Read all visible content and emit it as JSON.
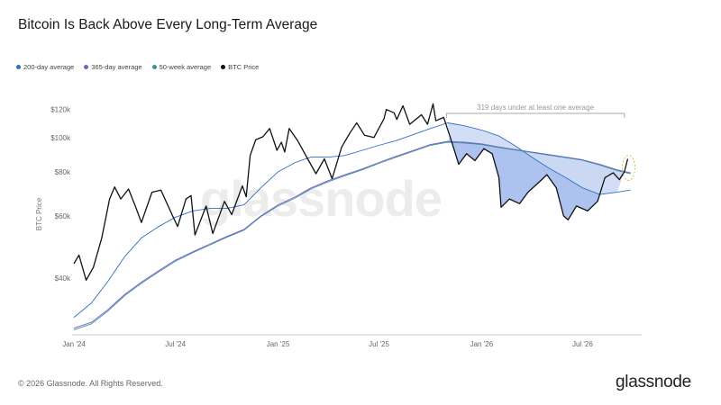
{
  "footer": {
    "copyright": "© 2026 Glassnode. All Rights Reserved.",
    "brand": "glassnode"
  },
  "watermark": "glassnode",
  "colors": {
    "sma200": "#2f6fc0",
    "sma365": "#7b5fc7",
    "wma50": "#3e8e9e",
    "btc": "#111111",
    "fill": "#6b8fe0",
    "highlight": "#d4c04a"
  },
  "chart_data": {
    "type": "line",
    "title": "Bitcoin Is Back Above Every Long-Term Average",
    "ylabel": "BTC Price",
    "xlabel": "",
    "y_scale": "log",
    "ylim": [
      28000,
      127000
    ],
    "xlim": [
      "2024-01-01",
      "2026-10-15"
    ],
    "y_ticks": [
      {
        "value": 40000,
        "label": "$40k"
      },
      {
        "value": 60000,
        "label": "$60k"
      },
      {
        "value": 80000,
        "label": "$80k"
      },
      {
        "value": 100000,
        "label": "$100k"
      },
      {
        "value": 120000,
        "label": "$120k"
      }
    ],
    "x_ticks": [
      {
        "date": "2024-01-01",
        "label": "Jan '24"
      },
      {
        "date": "2024-07-01",
        "label": "Jul '24"
      },
      {
        "date": "2025-01-01",
        "label": "Jan '25"
      },
      {
        "date": "2025-07-01",
        "label": "Jul '25"
      },
      {
        "date": "2026-01-01",
        "label": "Jan '26"
      },
      {
        "date": "2026-07-01",
        "label": "Jul '26"
      }
    ],
    "legend_position": "top-left",
    "grid": false,
    "annotation": {
      "text": "319 days under at least one average",
      "from": "2025-10-30",
      "to": "2026-09-14"
    },
    "series": [
      {
        "name": "200-day average",
        "color": "#2f6fc0",
        "points": [
          [
            "2024-01-01",
            31000
          ],
          [
            "2024-02-01",
            34000
          ],
          [
            "2024-03-01",
            39000
          ],
          [
            "2024-04-01",
            46000
          ],
          [
            "2024-05-01",
            52000
          ],
          [
            "2024-06-01",
            56000
          ],
          [
            "2024-07-01",
            59500
          ],
          [
            "2024-08-01",
            62000
          ],
          [
            "2024-09-01",
            63000
          ],
          [
            "2024-10-01",
            63000
          ],
          [
            "2024-11-01",
            64500
          ],
          [
            "2024-12-01",
            72000
          ],
          [
            "2025-01-01",
            80000
          ],
          [
            "2025-02-01",
            85000
          ],
          [
            "2025-03-01",
            88000
          ],
          [
            "2025-04-01",
            88000
          ],
          [
            "2025-05-01",
            89000
          ],
          [
            "2025-06-01",
            92000
          ],
          [
            "2025-07-01",
            95000
          ],
          [
            "2025-08-01",
            98000
          ],
          [
            "2025-09-01",
            102000
          ],
          [
            "2025-10-01",
            106000
          ],
          [
            "2025-11-01",
            110000
          ],
          [
            "2025-12-01",
            108000
          ],
          [
            "2026-01-01",
            105000
          ],
          [
            "2026-02-01",
            101000
          ],
          [
            "2026-03-01",
            95000
          ],
          [
            "2026-04-01",
            88000
          ],
          [
            "2026-05-01",
            82000
          ],
          [
            "2026-06-01",
            77000
          ],
          [
            "2026-07-01",
            72000
          ],
          [
            "2026-08-01",
            69000
          ],
          [
            "2026-09-01",
            70000
          ],
          [
            "2026-09-25",
            71000
          ]
        ]
      },
      {
        "name": "365-day average",
        "color": "#7b5fc7",
        "points": [
          [
            "2024-01-01",
            28900
          ],
          [
            "2024-02-01",
            30000
          ],
          [
            "2024-03-01",
            32500
          ],
          [
            "2024-04-01",
            36000
          ],
          [
            "2024-05-01",
            39000
          ],
          [
            "2024-06-01",
            42000
          ],
          [
            "2024-07-01",
            45000
          ],
          [
            "2024-08-01",
            47500
          ],
          [
            "2024-09-01",
            50000
          ],
          [
            "2024-10-01",
            52500
          ],
          [
            "2024-11-01",
            55000
          ],
          [
            "2024-12-01",
            60000
          ],
          [
            "2025-01-01",
            64500
          ],
          [
            "2025-02-01",
            68000
          ],
          [
            "2025-03-01",
            72000
          ],
          [
            "2025-04-01",
            75500
          ],
          [
            "2025-05-01",
            78500
          ],
          [
            "2025-06-01",
            81500
          ],
          [
            "2025-07-01",
            85000
          ],
          [
            "2025-08-01",
            88500
          ],
          [
            "2025-09-01",
            92000
          ],
          [
            "2025-10-01",
            95500
          ],
          [
            "2025-11-01",
            97500
          ],
          [
            "2025-12-01",
            97000
          ],
          [
            "2026-01-01",
            96000
          ],
          [
            "2026-02-01",
            94000
          ],
          [
            "2026-03-01",
            92500
          ],
          [
            "2026-04-01",
            91000
          ],
          [
            "2026-05-01",
            89500
          ],
          [
            "2026-06-01",
            88000
          ],
          [
            "2026-07-01",
            86500
          ],
          [
            "2026-08-01",
            84000
          ],
          [
            "2026-09-01",
            81000
          ],
          [
            "2026-09-25",
            79500
          ]
        ]
      },
      {
        "name": "50-week average",
        "color": "#3e8e9e",
        "points": [
          [
            "2024-01-01",
            28600
          ],
          [
            "2024-02-01",
            29700
          ],
          [
            "2024-03-01",
            32200
          ],
          [
            "2024-04-01",
            35700
          ],
          [
            "2024-05-01",
            38700
          ],
          [
            "2024-06-01",
            41700
          ],
          [
            "2024-07-01",
            44700
          ],
          [
            "2024-08-01",
            47200
          ],
          [
            "2024-09-01",
            49700
          ],
          [
            "2024-10-01",
            52200
          ],
          [
            "2024-11-01",
            54700
          ],
          [
            "2024-12-01",
            59700
          ],
          [
            "2025-01-01",
            64000
          ],
          [
            "2025-02-01",
            67500
          ],
          [
            "2025-03-01",
            71500
          ],
          [
            "2025-04-01",
            75000
          ],
          [
            "2025-05-01",
            78000
          ],
          [
            "2025-06-01",
            81000
          ],
          [
            "2025-07-01",
            84500
          ],
          [
            "2025-08-01",
            88000
          ],
          [
            "2025-09-01",
            91500
          ],
          [
            "2025-10-01",
            95000
          ],
          [
            "2025-11-01",
            97000
          ],
          [
            "2025-12-01",
            96500
          ],
          [
            "2026-01-01",
            95500
          ],
          [
            "2026-02-01",
            93700
          ],
          [
            "2026-03-01",
            92200
          ],
          [
            "2026-04-01",
            90700
          ],
          [
            "2026-05-01",
            89200
          ],
          [
            "2026-06-01",
            87700
          ],
          [
            "2026-07-01",
            86200
          ],
          [
            "2026-08-01",
            83600
          ],
          [
            "2026-09-01",
            80600
          ],
          [
            "2026-09-25",
            79000
          ]
        ]
      },
      {
        "name": "BTC Price",
        "color": "#111111",
        "points": [
          [
            "2024-01-01",
            44000
          ],
          [
            "2024-01-10",
            46500
          ],
          [
            "2024-01-23",
            39500
          ],
          [
            "2024-02-05",
            43000
          ],
          [
            "2024-02-20",
            52000
          ],
          [
            "2024-03-05",
            67000
          ],
          [
            "2024-03-14",
            72500
          ],
          [
            "2024-03-25",
            67000
          ],
          [
            "2024-04-08",
            71500
          ],
          [
            "2024-04-20",
            64000
          ],
          [
            "2024-05-01",
            57500
          ],
          [
            "2024-05-20",
            70000
          ],
          [
            "2024-06-05",
            71000
          ],
          [
            "2024-06-25",
            60500
          ],
          [
            "2024-07-05",
            56000
          ],
          [
            "2024-07-20",
            67000
          ],
          [
            "2024-07-29",
            68500
          ],
          [
            "2024-08-05",
            53000
          ],
          [
            "2024-08-25",
            64000
          ],
          [
            "2024-09-06",
            53500
          ],
          [
            "2024-09-27",
            66000
          ],
          [
            "2024-10-10",
            60500
          ],
          [
            "2024-10-29",
            73000
          ],
          [
            "2024-11-05",
            68000
          ],
          [
            "2024-11-12",
            89000
          ],
          [
            "2024-11-22",
            98500
          ],
          [
            "2024-12-05",
            100500
          ],
          [
            "2024-12-17",
            106000
          ],
          [
            "2024-12-30",
            92000
          ],
          [
            "2025-01-07",
            97000
          ],
          [
            "2025-01-13",
            91000
          ],
          [
            "2025-01-21",
            106000
          ],
          [
            "2025-02-05",
            98000
          ],
          [
            "2025-02-25",
            86000
          ],
          [
            "2025-03-10",
            79000
          ],
          [
            "2025-03-25",
            87000
          ],
          [
            "2025-04-08",
            76500
          ],
          [
            "2025-04-25",
            94000
          ],
          [
            "2025-05-10",
            103000
          ],
          [
            "2025-05-22",
            110000
          ],
          [
            "2025-06-05",
            101500
          ],
          [
            "2025-06-22",
            100000
          ],
          [
            "2025-07-10",
            113000
          ],
          [
            "2025-07-14",
            120000
          ],
          [
            "2025-07-28",
            117500
          ],
          [
            "2025-08-02",
            112500
          ],
          [
            "2025-08-13",
            123000
          ],
          [
            "2025-08-25",
            109000
          ],
          [
            "2025-09-15",
            116000
          ],
          [
            "2025-09-26",
            109000
          ],
          [
            "2025-10-06",
            124500
          ],
          [
            "2025-10-11",
            111500
          ],
          [
            "2025-10-25",
            114000
          ],
          [
            "2025-11-05",
            101000
          ],
          [
            "2025-11-21",
            84000
          ],
          [
            "2025-12-05",
            90000
          ],
          [
            "2025-12-20",
            86000
          ],
          [
            "2026-01-05",
            93000
          ],
          [
            "2026-01-20",
            90000
          ],
          [
            "2026-02-01",
            77000
          ],
          [
            "2026-02-05",
            63500
          ],
          [
            "2026-02-20",
            67000
          ],
          [
            "2026-03-10",
            65000
          ],
          [
            "2026-03-25",
            70000
          ],
          [
            "2026-04-15",
            75000
          ],
          [
            "2026-04-28",
            78500
          ],
          [
            "2026-05-15",
            72000
          ],
          [
            "2026-05-28",
            60000
          ],
          [
            "2026-06-05",
            58500
          ],
          [
            "2026-06-20",
            64000
          ],
          [
            "2026-07-10",
            62000
          ],
          [
            "2026-07-28",
            66000
          ],
          [
            "2026-08-10",
            77000
          ],
          [
            "2026-08-25",
            79500
          ],
          [
            "2026-09-05",
            76000
          ],
          [
            "2026-09-14",
            80000
          ],
          [
            "2026-09-20",
            87000
          ]
        ]
      }
    ]
  }
}
